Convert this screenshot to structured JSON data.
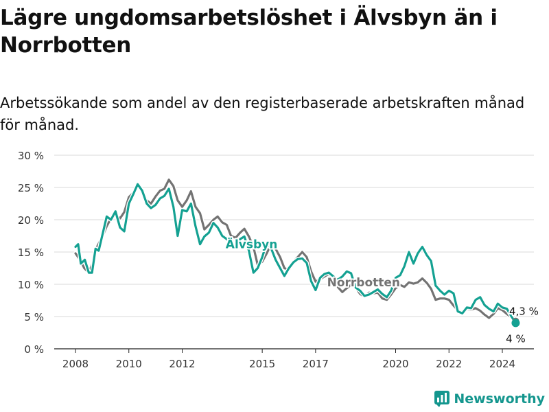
{
  "title": "Lägre ungdomsarbetslöshet i Älvsbyn än i Norrbotten",
  "subtitle": "Arbetssökande som andel av den registerbaserade arbetskraften månad för månad.",
  "brand": {
    "name": "Newsworthy",
    "color": "#14968e"
  },
  "chart_data": {
    "type": "line",
    "title": "Lägre ungdomsarbetslöshet i Älvsbyn än i Norrbotten",
    "xlabel": "",
    "ylabel": "",
    "xlim": [
      2007.5,
      2025.2
    ],
    "ylim": [
      0,
      30
    ],
    "grid": true,
    "x_ticks": [
      2008,
      2010,
      2012,
      2015,
      2017,
      2020,
      2022,
      2024
    ],
    "x_tick_labels": [
      "2008",
      "2010",
      "2012",
      "2015",
      "2017",
      "2020",
      "2022",
      "2024"
    ],
    "y_ticks": [
      0,
      5,
      10,
      15,
      20,
      25,
      30
    ],
    "y_tick_labels": [
      "0 %",
      "5 %",
      "10 %",
      "15 %",
      "20 %",
      "25 %",
      "30 %"
    ],
    "series": [
      {
        "name": "Norrbotten",
        "color": "#737373",
        "label": "Norrbotten",
        "end_label": "4,3 %",
        "points": [
          [
            2008.0,
            14.8
          ],
          [
            2008.17,
            13.8
          ],
          [
            2008.33,
            12.5
          ],
          [
            2008.5,
            11.8
          ],
          [
            2008.67,
            13.5
          ],
          [
            2008.83,
            16.0
          ],
          [
            2009.0,
            17.3
          ],
          [
            2009.17,
            19.0
          ],
          [
            2009.33,
            20.2
          ],
          [
            2009.5,
            20.8
          ],
          [
            2009.67,
            20.2
          ],
          [
            2009.83,
            21.2
          ],
          [
            2010.0,
            23.5
          ],
          [
            2010.17,
            24.2
          ],
          [
            2010.33,
            25.3
          ],
          [
            2010.5,
            24.5
          ],
          [
            2010.67,
            23.0
          ],
          [
            2010.83,
            22.5
          ],
          [
            2011.0,
            23.6
          ],
          [
            2011.17,
            24.5
          ],
          [
            2011.33,
            24.8
          ],
          [
            2011.5,
            26.2
          ],
          [
            2011.67,
            25.2
          ],
          [
            2011.83,
            23.0
          ],
          [
            2012.0,
            22.0
          ],
          [
            2012.17,
            23.0
          ],
          [
            2012.33,
            24.4
          ],
          [
            2012.5,
            22.0
          ],
          [
            2012.67,
            21.0
          ],
          [
            2012.83,
            18.5
          ],
          [
            2013.0,
            19.2
          ],
          [
            2013.17,
            20.0
          ],
          [
            2013.33,
            20.5
          ],
          [
            2013.5,
            19.6
          ],
          [
            2013.67,
            19.2
          ],
          [
            2013.83,
            17.5
          ],
          [
            2014.0,
            17.2
          ],
          [
            2014.17,
            18.0
          ],
          [
            2014.33,
            18.6
          ],
          [
            2014.5,
            17.4
          ],
          [
            2014.67,
            15.8
          ],
          [
            2014.83,
            13.0
          ],
          [
            2015.0,
            13.5
          ],
          [
            2015.17,
            14.8
          ],
          [
            2015.33,
            16.2
          ],
          [
            2015.5,
            15.5
          ],
          [
            2015.67,
            14.2
          ],
          [
            2015.83,
            12.5
          ],
          [
            2016.0,
            12.2
          ],
          [
            2016.17,
            13.5
          ],
          [
            2016.33,
            14.2
          ],
          [
            2016.5,
            15.0
          ],
          [
            2016.67,
            14.2
          ],
          [
            2016.83,
            12.0
          ],
          [
            2017.0,
            10.4
          ],
          [
            2017.17,
            10.8
          ],
          [
            2017.33,
            11.2
          ],
          [
            2017.5,
            11.6
          ],
          [
            2017.67,
            11.0
          ],
          [
            2017.83,
            9.6
          ],
          [
            2018.0,
            8.8
          ],
          [
            2018.17,
            9.4
          ],
          [
            2018.33,
            9.9
          ],
          [
            2018.5,
            9.5
          ],
          [
            2018.67,
            8.5
          ],
          [
            2018.83,
            8.1
          ],
          [
            2019.0,
            8.7
          ],
          [
            2019.17,
            8.6
          ],
          [
            2019.33,
            8.7
          ],
          [
            2019.5,
            7.8
          ],
          [
            2019.67,
            7.6
          ],
          [
            2019.83,
            8.4
          ],
          [
            2020.0,
            9.4
          ],
          [
            2020.17,
            9.9
          ],
          [
            2020.33,
            9.6
          ],
          [
            2020.5,
            10.3
          ],
          [
            2020.67,
            10.1
          ],
          [
            2020.83,
            10.3
          ],
          [
            2021.0,
            10.9
          ],
          [
            2021.17,
            10.2
          ],
          [
            2021.33,
            9.3
          ],
          [
            2021.5,
            7.6
          ],
          [
            2021.67,
            7.8
          ],
          [
            2021.83,
            7.8
          ],
          [
            2022.0,
            7.6
          ],
          [
            2022.17,
            6.7
          ],
          [
            2022.33,
            6.0
          ],
          [
            2022.5,
            5.6
          ],
          [
            2022.67,
            6.2
          ],
          [
            2022.83,
            6.1
          ],
          [
            2023.0,
            6.3
          ],
          [
            2023.17,
            5.9
          ],
          [
            2023.33,
            5.3
          ],
          [
            2023.5,
            4.8
          ],
          [
            2023.67,
            5.4
          ],
          [
            2023.83,
            6.3
          ],
          [
            2024.0,
            6.0
          ],
          [
            2024.17,
            5.4
          ],
          [
            2024.33,
            4.9
          ],
          [
            2024.5,
            4.3
          ]
        ]
      },
      {
        "name": "Älvsbyn",
        "color": "#14a192",
        "label": "Älvsbyn",
        "end_label": "4 %",
        "points": [
          [
            2008.0,
            15.8
          ],
          [
            2008.1,
            16.2
          ],
          [
            2008.2,
            13.2
          ],
          [
            2008.35,
            13.8
          ],
          [
            2008.5,
            11.8
          ],
          [
            2008.62,
            11.8
          ],
          [
            2008.75,
            15.5
          ],
          [
            2008.87,
            15.2
          ],
          [
            2009.0,
            17.5
          ],
          [
            2009.17,
            20.5
          ],
          [
            2009.33,
            20.0
          ],
          [
            2009.5,
            21.3
          ],
          [
            2009.67,
            18.8
          ],
          [
            2009.83,
            18.2
          ],
          [
            2010.0,
            22.5
          ],
          [
            2010.17,
            24.0
          ],
          [
            2010.33,
            25.5
          ],
          [
            2010.5,
            24.5
          ],
          [
            2010.67,
            22.5
          ],
          [
            2010.83,
            21.8
          ],
          [
            2011.0,
            22.3
          ],
          [
            2011.17,
            23.3
          ],
          [
            2011.33,
            23.7
          ],
          [
            2011.5,
            24.8
          ],
          [
            2011.67,
            22.0
          ],
          [
            2011.83,
            17.5
          ],
          [
            2012.0,
            21.5
          ],
          [
            2012.17,
            21.3
          ],
          [
            2012.33,
            22.5
          ],
          [
            2012.5,
            19.0
          ],
          [
            2012.67,
            16.2
          ],
          [
            2012.83,
            17.4
          ],
          [
            2013.0,
            18.0
          ],
          [
            2013.17,
            19.5
          ],
          [
            2013.33,
            18.8
          ],
          [
            2013.5,
            17.5
          ],
          [
            2013.67,
            17.0
          ],
          [
            2013.83,
            16.5
          ],
          [
            2014.0,
            15.8
          ],
          [
            2014.17,
            17.0
          ],
          [
            2014.33,
            17.4
          ],
          [
            2014.5,
            15.2
          ],
          [
            2014.67,
            11.8
          ],
          [
            2014.83,
            12.5
          ],
          [
            2015.0,
            14.2
          ],
          [
            2015.17,
            16.4
          ],
          [
            2015.33,
            15.6
          ],
          [
            2015.5,
            13.8
          ],
          [
            2015.67,
            12.5
          ],
          [
            2015.83,
            11.3
          ],
          [
            2016.0,
            12.5
          ],
          [
            2016.17,
            13.4
          ],
          [
            2016.33,
            13.9
          ],
          [
            2016.5,
            14.0
          ],
          [
            2016.67,
            13.3
          ],
          [
            2016.83,
            10.5
          ],
          [
            2017.0,
            9.1
          ],
          [
            2017.17,
            11.0
          ],
          [
            2017.33,
            11.6
          ],
          [
            2017.5,
            11.8
          ],
          [
            2017.67,
            11.2
          ],
          [
            2017.83,
            10.7
          ],
          [
            2018.0,
            11.2
          ],
          [
            2018.17,
            12.0
          ],
          [
            2018.33,
            11.7
          ],
          [
            2018.5,
            9.5
          ],
          [
            2018.67,
            9.0
          ],
          [
            2018.83,
            8.2
          ],
          [
            2019.0,
            8.4
          ],
          [
            2019.17,
            8.8
          ],
          [
            2019.33,
            9.2
          ],
          [
            2019.5,
            8.5
          ],
          [
            2019.67,
            8.0
          ],
          [
            2019.83,
            9.0
          ],
          [
            2020.0,
            11.0
          ],
          [
            2020.17,
            11.4
          ],
          [
            2020.33,
            12.8
          ],
          [
            2020.5,
            15.0
          ],
          [
            2020.67,
            13.2
          ],
          [
            2020.83,
            14.8
          ],
          [
            2021.0,
            15.8
          ],
          [
            2021.17,
            14.5
          ],
          [
            2021.33,
            13.6
          ],
          [
            2021.5,
            9.8
          ],
          [
            2021.67,
            9.0
          ],
          [
            2021.83,
            8.4
          ],
          [
            2022.0,
            9.0
          ],
          [
            2022.17,
            8.6
          ],
          [
            2022.33,
            5.8
          ],
          [
            2022.5,
            5.5
          ],
          [
            2022.67,
            6.4
          ],
          [
            2022.83,
            6.3
          ],
          [
            2023.0,
            7.6
          ],
          [
            2023.17,
            8.0
          ],
          [
            2023.33,
            6.8
          ],
          [
            2023.5,
            6.2
          ],
          [
            2023.67,
            5.8
          ],
          [
            2023.83,
            7.0
          ],
          [
            2024.0,
            6.4
          ],
          [
            2024.17,
            6.2
          ],
          [
            2024.33,
            5.1
          ],
          [
            2024.5,
            4.0
          ]
        ]
      }
    ],
    "annotations": [
      {
        "series": "Älvsbyn",
        "text": "Älvsbyn",
        "at": [
          2014.6,
          15.6
        ]
      },
      {
        "series": "Norrbotten",
        "text": "Norrbotten",
        "at": [
          2018.8,
          9.7
        ]
      }
    ]
  }
}
